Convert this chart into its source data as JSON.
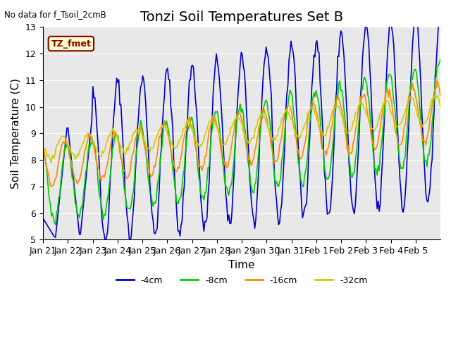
{
  "title": "Tonzi Soil Temperatures Set B",
  "xlabel": "Time",
  "ylabel": "Soil Temperature (C)",
  "no_data_text": "No data for f_Tsoil_2cmB",
  "legend_label_text": "TZ_fmet",
  "ylim": [
    5.0,
    13.0
  ],
  "yticks": [
    5.0,
    6.0,
    7.0,
    8.0,
    9.0,
    10.0,
    11.0,
    12.0,
    13.0
  ],
  "xtick_labels": [
    "Jan 21",
    "Jan 22",
    "Jan 23",
    "Jan 24",
    "Jan 25",
    "Jan 26",
    "Jan 27",
    "Jan 28",
    "Jan 29",
    "Jan 30",
    "Jan 31",
    "Feb 1",
    "Feb 2",
    "Feb 3",
    "Feb 4",
    "Feb 5"
  ],
  "line_colors": {
    "4cm": "#0000cc",
    "8cm": "#00cc00",
    "16cm": "#ff8800",
    "32cm": "#cccc00"
  },
  "legend_entries": [
    "-4cm",
    "-8cm",
    "-16cm",
    "-32cm"
  ],
  "background_color": "#e8e8e8",
  "title_fontsize": 14,
  "axis_label_fontsize": 11,
  "tick_fontsize": 9
}
